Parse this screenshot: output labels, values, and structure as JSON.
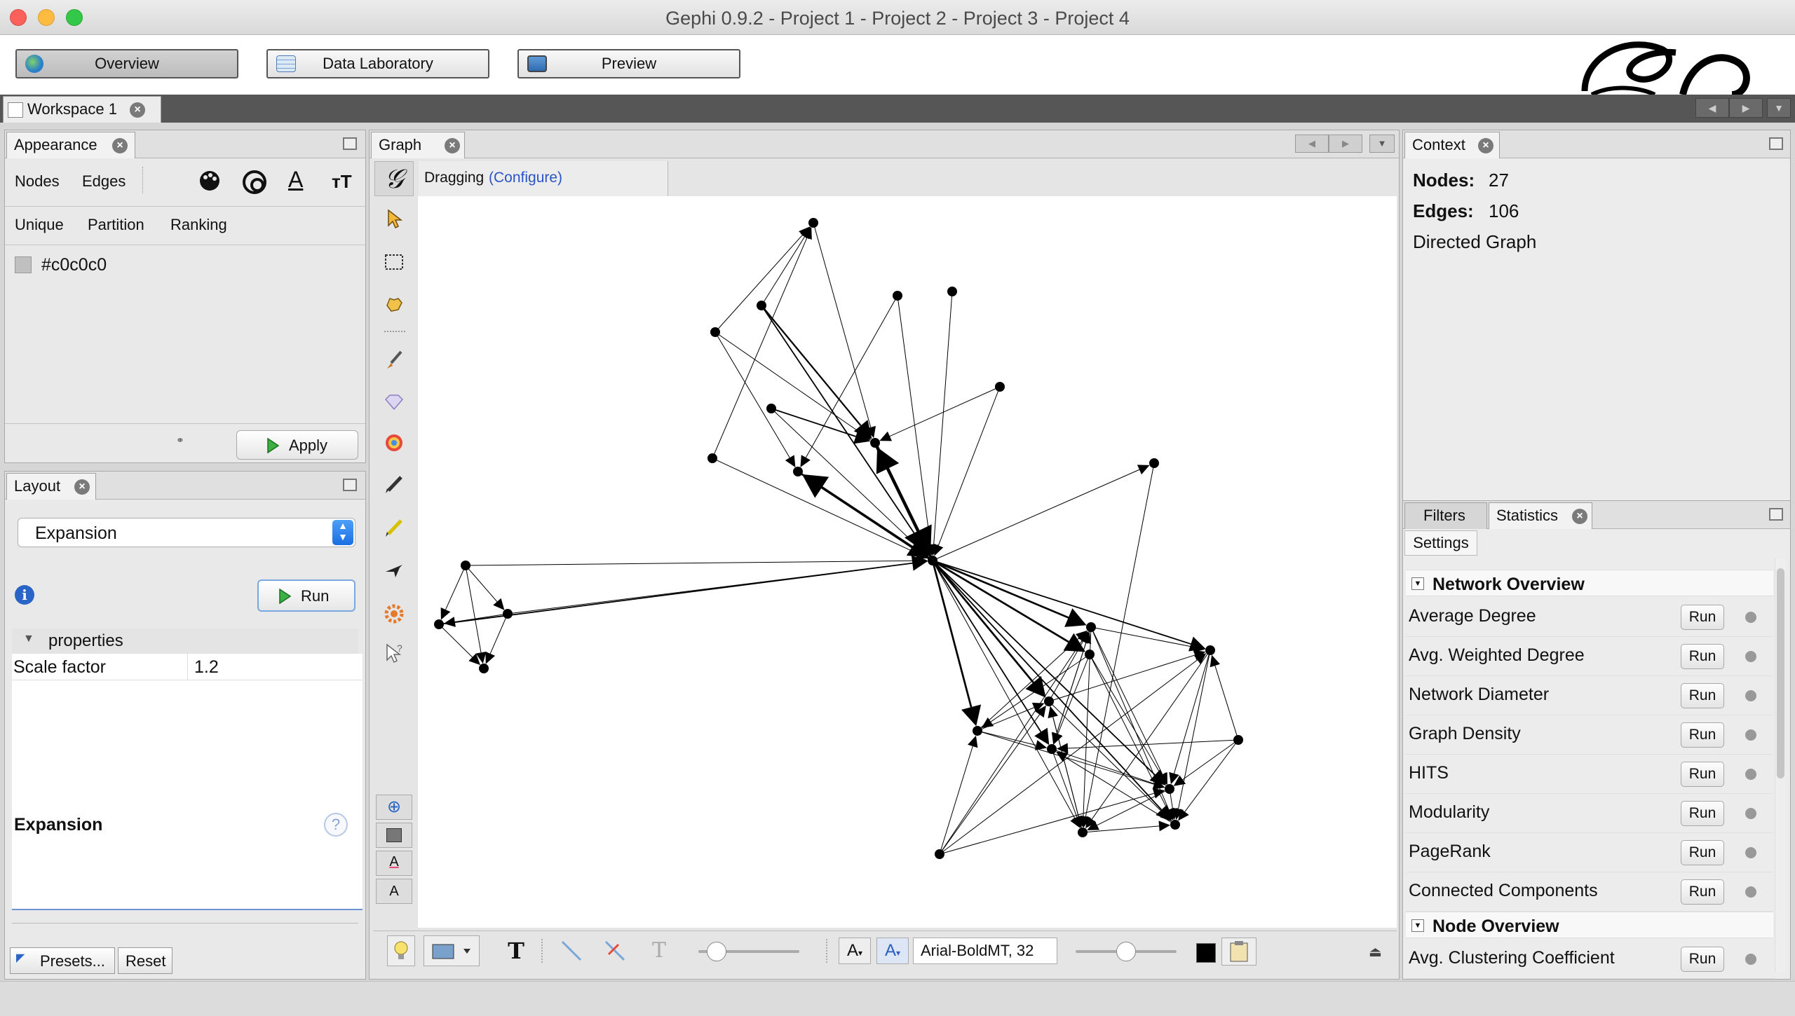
{
  "window": {
    "title": "Gephi 0.9.2 - Project 1 - Project 2 - Project 3 - Project 4"
  },
  "modes": [
    {
      "label": "Overview",
      "icon": "globe-icon"
    },
    {
      "label": "Data Laboratory",
      "icon": "spreadsheet-icon"
    },
    {
      "label": "Preview",
      "icon": "monitor-icon"
    }
  ],
  "workspace": {
    "tab": "Workspace 1"
  },
  "appearance": {
    "tab": "Appearance",
    "element_tabs": [
      "Nodes",
      "Edges"
    ],
    "mode_tabs": [
      "Unique",
      "Partition",
      "Ranking"
    ],
    "color_value": "#c0c0c0",
    "swatch_color": "#c0c0c0",
    "apply_label": "Apply"
  },
  "layout": {
    "tab": "Layout",
    "algorithm": "Expansion",
    "run_label": "Run",
    "properties_header": "properties",
    "prop_name": "Scale factor",
    "prop_value": "1.2",
    "desc_title": "Expansion",
    "presets_label": "Presets...",
    "reset_label": "Reset"
  },
  "graph": {
    "tab": "Graph",
    "mode_label": "Dragging",
    "configure_link": "(Configure)",
    "font_label": "Arial-BoldMT, 32"
  },
  "context": {
    "tab": "Context",
    "nodes_label": "Nodes:",
    "nodes_value": "27",
    "edges_label": "Edges:",
    "edges_value": "106",
    "graph_type": "Directed Graph"
  },
  "statistics": {
    "tabs": [
      "Filters",
      "Statistics"
    ],
    "settings_label": "Settings",
    "network_header": "Network Overview",
    "network_items": [
      "Average Degree",
      "Avg. Weighted Degree",
      "Network Diameter",
      "Graph Density",
      "HITS",
      "Modularity",
      "PageRank",
      "Connected Components"
    ],
    "node_header": "Node Overview",
    "node_items": [
      "Avg. Clustering Coefficient"
    ],
    "run_label": "Run"
  }
}
